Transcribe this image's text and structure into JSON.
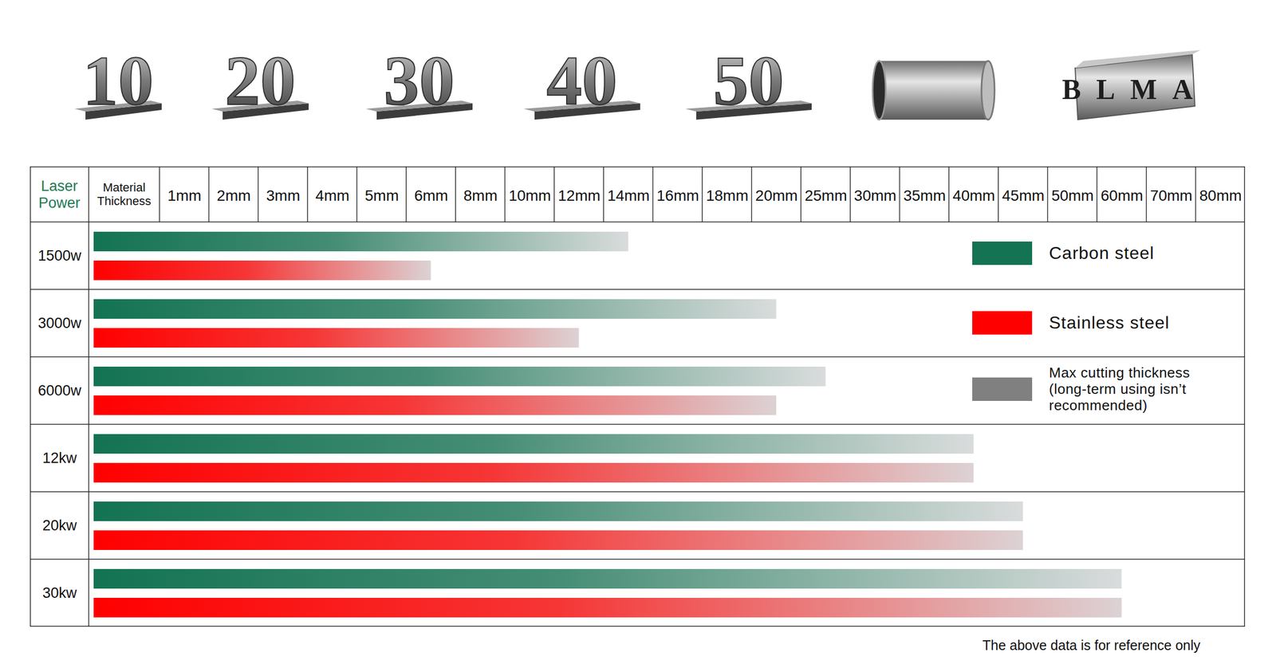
{
  "chart_data": {
    "type": "bar",
    "orientation": "horizontal",
    "row_header": "Laser Power",
    "column_header": "Material Thickness",
    "categories": [
      "1500w",
      "3000w",
      "6000w",
      "12kw",
      "20kw",
      "30kw"
    ],
    "xticks": [
      {
        "value": 1,
        "label": "1mm"
      },
      {
        "value": 2,
        "label": "2mm"
      },
      {
        "value": 3,
        "label": "3mm"
      },
      {
        "value": 4,
        "label": "4mm"
      },
      {
        "value": 5,
        "label": "5mm"
      },
      {
        "value": 6,
        "label": "6mm"
      },
      {
        "value": 8,
        "label": "8mm"
      },
      {
        "value": 10,
        "label": "10mm"
      },
      {
        "value": 12,
        "label": "12mm"
      },
      {
        "value": 14,
        "label": "14mm"
      },
      {
        "value": 16,
        "label": "16mm"
      },
      {
        "value": 18,
        "label": "18mm"
      },
      {
        "value": 20,
        "label": "20mm"
      },
      {
        "value": 25,
        "label": "25mm"
      },
      {
        "value": 30,
        "label": "30mm"
      },
      {
        "value": 35,
        "label": "35mm"
      },
      {
        "value": 40,
        "label": "40mm"
      },
      {
        "value": 45,
        "label": "45mm"
      },
      {
        "value": 50,
        "label": "50mm"
      },
      {
        "value": 60,
        "label": "60mm"
      },
      {
        "value": 70,
        "label": "70mm"
      },
      {
        "value": 80,
        "label": "80mm"
      }
    ],
    "series": [
      {
        "name": "Carbon steel",
        "color": "#137352",
        "values": [
          14,
          20,
          25,
          40,
          45,
          60
        ]
      },
      {
        "name": "Stainless steel",
        "color": "#ff0000",
        "values": [
          6,
          12,
          20,
          40,
          45,
          60
        ]
      }
    ],
    "max_thickness_note": {
      "label": "Max cutting thickness (long-term using isn’t recommended)",
      "color": "#808080"
    },
    "legend": "right",
    "grid": true,
    "samples": [
      "10",
      "20",
      "30",
      "40",
      "50",
      "BLMA"
    ],
    "note": "The above data is for reference only"
  }
}
